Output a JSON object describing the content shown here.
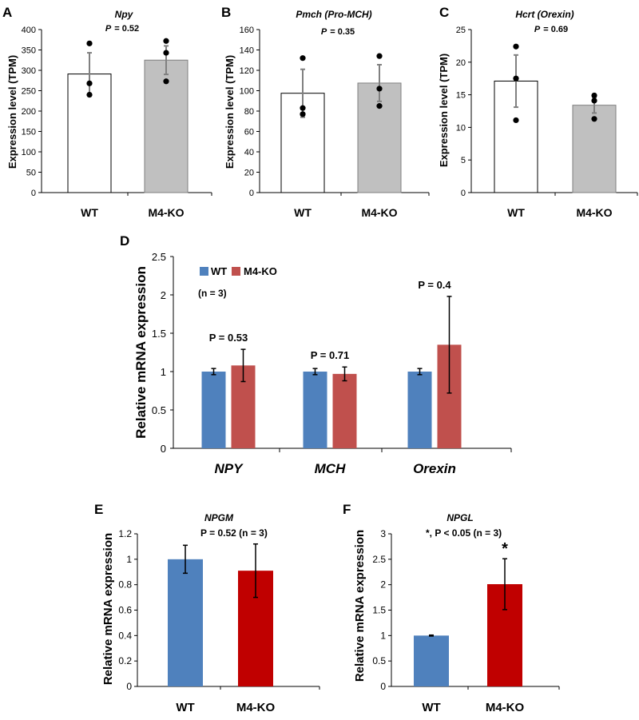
{
  "chart_data": [
    {
      "panel": "A",
      "type": "bar",
      "title": "Npy",
      "p_label": "P",
      "p_value": "= 0.52",
      "ylabel": "Expression level (TPM)",
      "categories": [
        "WT",
        "M4-KO"
      ],
      "values": [
        291,
        325
      ],
      "errors": [
        52,
        35
      ],
      "points": [
        [
          366,
          268,
          240
        ],
        [
          372,
          343,
          273
        ]
      ],
      "bar_colors": [
        "#ffffff",
        "#c0c0c0"
      ],
      "ylim": [
        0,
        400
      ],
      "yticks": [
        0,
        50,
        100,
        150,
        200,
        250,
        300,
        350,
        400
      ]
    },
    {
      "panel": "B",
      "type": "bar",
      "title": "Pmch (Pro-MCH)",
      "p_label": "P",
      "p_value": "= 0.35",
      "ylabel": "Expression level (TPM)",
      "categories": [
        "WT",
        "M4-KO"
      ],
      "values": [
        97.5,
        107.5
      ],
      "errors": [
        23.5,
        18
      ],
      "points": [
        [
          132,
          83,
          77
        ],
        [
          134,
          102,
          85
        ]
      ],
      "bar_colors": [
        "#ffffff",
        "#c0c0c0"
      ],
      "ylim": [
        0,
        160
      ],
      "yticks": [
        0,
        20,
        40,
        60,
        80,
        100,
        120,
        140,
        160
      ]
    },
    {
      "panel": "C",
      "type": "bar",
      "title": "Hcrt (Orexin)",
      "p_label": "P",
      "p_value": "= 0.69",
      "ylabel": "Expression level (TPM)",
      "categories": [
        "WT",
        "M4-KO"
      ],
      "values": [
        17.1,
        13.4
      ],
      "errors": [
        4,
        1.2
      ],
      "points": [
        [
          22.4,
          17.5,
          11.1
        ],
        [
          14.9,
          14.1,
          11.3
        ]
      ],
      "bar_colors": [
        "#ffffff",
        "#c0c0c0"
      ],
      "ylim": [
        0,
        25
      ],
      "yticks": [
        0,
        5,
        10,
        15,
        20,
        25
      ]
    },
    {
      "panel": "D",
      "type": "bar",
      "ylabel": "Relative mRNA expression",
      "categories": [
        "NPY",
        "MCH",
        "Orexin"
      ],
      "series": [
        {
          "name": "WT",
          "values": [
            1.0,
            1.0,
            1.0
          ],
          "errors": [
            0.04,
            0.04,
            0.04
          ],
          "color": "#4f81bd"
        },
        {
          "name": "M4-KO",
          "values": [
            1.08,
            0.97,
            1.35
          ],
          "errors": [
            0.21,
            0.09,
            0.63
          ],
          "color": "#c0504d"
        }
      ],
      "note": "(n = 3)",
      "p_annotations": [
        "P = 0.53",
        "P = 0.71",
        "P = 0.4"
      ],
      "legend": "top-left",
      "ylim": [
        0,
        2.5
      ],
      "yticks": [
        "0",
        "0.5",
        "1",
        "1.5",
        "2",
        "2.5"
      ]
    },
    {
      "panel": "E",
      "type": "bar",
      "title": "NPGM",
      "annotation": "P = 0.52 (n = 3)",
      "ylabel": "Relative mRNA expression",
      "categories": [
        "WT",
        "M4-KO"
      ],
      "values": [
        1.0,
        0.91
      ],
      "errors": [
        0.11,
        0.21
      ],
      "bar_colors": [
        "#4f81bd",
        "#c00000"
      ],
      "ylim": [
        0,
        1.2
      ],
      "yticks": [
        "0",
        "0.2",
        "0.4",
        "0.6",
        "0.8",
        "1",
        "1.2"
      ]
    },
    {
      "panel": "F",
      "type": "bar",
      "title": "NPGL",
      "annotation": "*, P < 0.05 (n = 3)",
      "significance": "*",
      "ylabel": "Relative mRNA expression",
      "categories": [
        "WT",
        "M4-KO"
      ],
      "values": [
        1.0,
        2.01
      ],
      "errors": [
        0.01,
        0.5
      ],
      "bar_colors": [
        "#4f81bd",
        "#c00000"
      ],
      "ylim": [
        0,
        3
      ],
      "yticks": [
        "0",
        "0.5",
        "1",
        "1.5",
        "2",
        "2.5",
        "3"
      ]
    }
  ]
}
